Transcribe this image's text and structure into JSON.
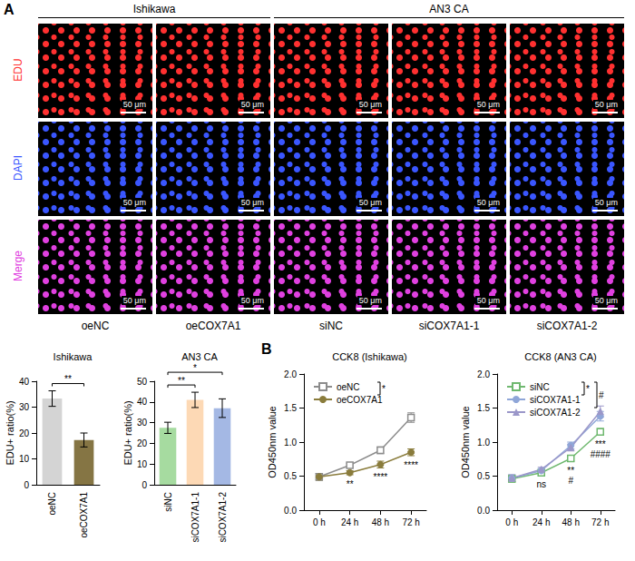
{
  "panel_a": {
    "letter": "A",
    "groups": [
      {
        "label": "Ishikawa",
        "columns": [
          "oeNC",
          "oeCOX7A1"
        ]
      },
      {
        "label": "AN3 CA",
        "columns": [
          "siNC",
          "siCOX7A1-1",
          "siCOX7A1-2"
        ]
      }
    ],
    "rows": [
      {
        "label": "EDU",
        "color": "#ff3030"
      },
      {
        "label": "DAPI",
        "color": "#3a56ff"
      },
      {
        "label": "Merge",
        "color": "#e040e0"
      }
    ],
    "scale_bar": "50 μm"
  },
  "panel_b_letter": "B",
  "chart_data": [
    {
      "type": "bar",
      "title": "Ishikawa",
      "y_label": "EDU+ ratio(%)",
      "categories": [
        "oeNC",
        "oeCOX7A1"
      ],
      "values": [
        33.3,
        17.3
      ],
      "errors": [
        3.0,
        2.7
      ],
      "colors": [
        "#d4d4d4",
        "#857544"
      ],
      "ylim": [
        0,
        40
      ],
      "yticks": [
        0,
        10,
        20,
        30,
        40
      ],
      "grid": false,
      "significance": [
        {
          "pair": [
            0,
            1
          ],
          "label": "**"
        }
      ]
    },
    {
      "type": "bar",
      "title": "AN3 CA",
      "y_label": "EDU+ ratio(%)",
      "categories": [
        "siNC",
        "siCOX7A1-1",
        "siCOX7A1-2"
      ],
      "values": [
        27.5,
        41.0,
        37.0
      ],
      "errors": [
        2.7,
        3.7,
        4.5
      ],
      "colors": [
        "#a6dba0",
        "#fdd9b5",
        "#a4b8e4"
      ],
      "ylim": [
        0,
        50
      ],
      "yticks": [
        0,
        10,
        20,
        30,
        40,
        50
      ],
      "grid": false,
      "significance": [
        {
          "pair": [
            0,
            1
          ],
          "label": "**"
        },
        {
          "pair": [
            0,
            2
          ],
          "label": "*"
        }
      ]
    },
    {
      "type": "line",
      "title": "CCK8 (Ishikawa)",
      "y_label": "OD450nm value",
      "categories": [
        "0 h",
        "24 h",
        "48 h",
        "72 h"
      ],
      "series": [
        {
          "name": "oeNC",
          "color": "#8c8c8c",
          "marker": "square",
          "values": [
            0.49,
            0.66,
            0.88,
            1.36
          ],
          "errors": [
            0.05,
            0.03,
            0.05,
            0.07
          ]
        },
        {
          "name": "oeCOX7A1",
          "color": "#8a7c3c",
          "marker": "circle",
          "values": [
            0.49,
            0.55,
            0.67,
            0.85
          ],
          "errors": [
            0.05,
            0.03,
            0.05,
            0.05
          ]
        }
      ],
      "ylim": [
        0,
        2
      ],
      "yticks": [
        {
          "value": 0,
          "label": "0.0"
        },
        0.5,
        {
          "value": 1,
          "label": "1.0"
        },
        1.5,
        {
          "value": 2,
          "label": "2.0"
        }
      ],
      "grid": false,
      "legend": "upper left",
      "legend_brackets": [
        {
          "pair": [
            0,
            1
          ],
          "label": "*"
        }
      ],
      "annotations": [
        {
          "x": "24 h",
          "label": "**"
        },
        {
          "x": "48 h",
          "label": "****"
        },
        {
          "x": "72 h",
          "label": "****"
        }
      ]
    },
    {
      "type": "line",
      "title": "CCK8 (AN3 CA)",
      "y_label": "OD450nm value",
      "categories": [
        "0 h",
        "24 h",
        "48 h",
        "72 h"
      ],
      "series": [
        {
          "name": "siNC",
          "color": "#6fb86f",
          "marker": "square",
          "values": [
            0.46,
            0.55,
            0.76,
            1.15
          ],
          "errors": [
            0.05,
            0.03,
            0.04,
            0.05
          ]
        },
        {
          "name": "siCOX7A1-1",
          "color": "#8fa6d8",
          "marker": "circle",
          "values": [
            0.47,
            0.58,
            0.95,
            1.38
          ],
          "errors": [
            0.05,
            0.03,
            0.05,
            0.07
          ]
        },
        {
          "name": "siCOX7A1-2",
          "color": "#9b97c9",
          "marker": "triangle",
          "values": [
            0.47,
            0.6,
            0.92,
            1.45
          ],
          "errors": [
            0.05,
            0.03,
            0.05,
            0.08
          ]
        }
      ],
      "ylim": [
        0,
        2
      ],
      "yticks": [
        {
          "value": 0,
          "label": "0.0"
        },
        0.5,
        {
          "value": 1,
          "label": "1.0"
        },
        1.5,
        {
          "value": 2,
          "label": "2.0"
        }
      ],
      "grid": false,
      "legend": "upper left",
      "legend_brackets": [
        {
          "pair": [
            0,
            1
          ],
          "label": "*"
        },
        {
          "pair": [
            0,
            2
          ],
          "label": "#"
        }
      ],
      "annotations": [
        {
          "x": "24 h",
          "label": "ns"
        },
        {
          "x": "48 h",
          "label": "**"
        },
        {
          "x": "48 h",
          "label": "#"
        },
        {
          "x": "72 h",
          "label": "***"
        },
        {
          "x": "72 h",
          "label": "####"
        }
      ]
    }
  ]
}
